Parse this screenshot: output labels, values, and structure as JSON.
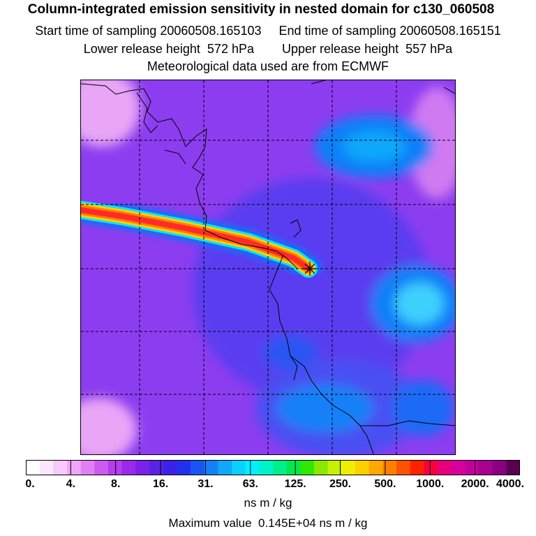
{
  "title": "Column-integrated emission sensitivity in nested domain for c130_060508",
  "sampling": {
    "start_label": "Start time of sampling",
    "start_value": "20060508.165103",
    "end_label": "End time of sampling",
    "end_value": "20060508.165151"
  },
  "release": {
    "lower_label": "Lower release height",
    "lower_value": "572 hPa",
    "upper_label": "Upper release height",
    "upper_value": "557 hPa"
  },
  "met_note": "Meteorological data used are from ECMWF",
  "colorbar": {
    "tick_labels": [
      "0.",
      "4.",
      "8.",
      "16.",
      "31.",
      "63.",
      "125.",
      "250.",
      "500.",
      "1000.",
      "2000.",
      "4000."
    ],
    "colors": [
      "#ffffff",
      "#fde6ff",
      "#f7c9fc",
      "#f0a6f8",
      "#e27ff3",
      "#cd5bf0",
      "#b53ded",
      "#9a29ea",
      "#7a22e8",
      "#5a22e6",
      "#3b22e8",
      "#2430ee",
      "#1a55f4",
      "#1380f8",
      "#0fa8fb",
      "#0ccffd",
      "#00f0ff",
      "#00f2c8",
      "#00ee8c",
      "#00e84a",
      "#30e800",
      "#8ae800",
      "#c8f000",
      "#f0ee00",
      "#ffcf00",
      "#ffa800",
      "#ff8000",
      "#ff5200",
      "#ff2200",
      "#f80040",
      "#e8007a",
      "#d8009a",
      "#c0009a",
      "#a80090",
      "#8a0080",
      "#5a0050"
    ],
    "units": "ns m / kg"
  },
  "max_value_text": "Maximum value  0.145E+04 ns m / kg",
  "colors": {
    "background": "#9a4cf0",
    "plume_core": "#ff1e3c",
    "plume_edge": "#00e6ff",
    "light_region": "#0fa8fb",
    "pale_region": "#e9a5f6",
    "coastline": "#000000"
  }
}
